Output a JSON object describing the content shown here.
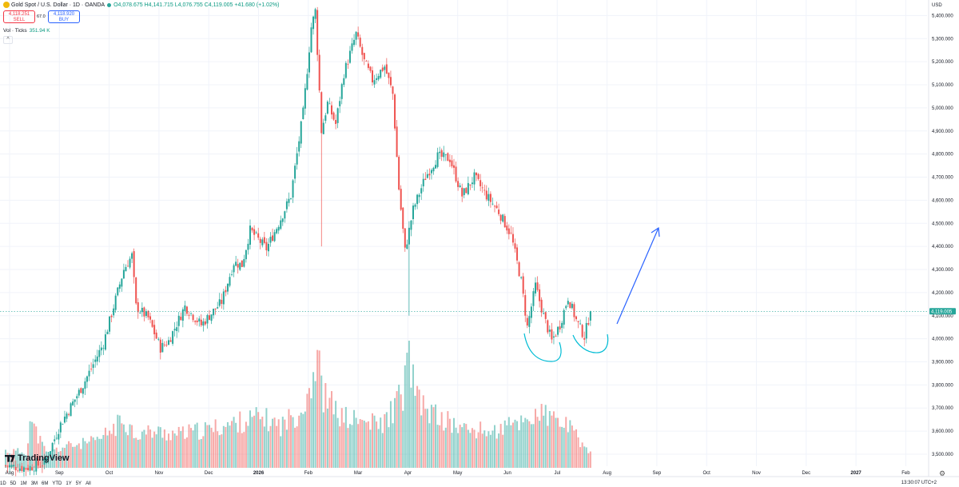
{
  "header": {
    "symbol": "Gold Spot / U.S. Dollar · 1D · OANDA",
    "ohlc": "O4,078.675  H4,141.715  L4,076.755  C4,119.005  +41.680 (+1.02%)",
    "sell_price": "4,118.251",
    "sell_label": "SELL",
    "spread": "67.0",
    "buy_price": "4,118.920",
    "buy_label": "BUY",
    "volume_label": "Vol · Ticks",
    "volume_value": "351.94 K",
    "currency": "USD",
    "collapse_symbol": "^"
  },
  "branding": {
    "logo_text": "TradingView"
  },
  "timeframes": [
    "1D",
    "5D",
    "1M",
    "3M",
    "6M",
    "YTD",
    "1Y",
    "5Y",
    "All"
  ],
  "clock": "13:30:07 UTC+2",
  "colors": {
    "up": "#26a69a",
    "down": "#ef5350",
    "price_line": "#26a69a",
    "annotation_arrow": "#2962ff",
    "annotation_curve": "#00bcd4"
  },
  "chart_data": {
    "type": "candlestick",
    "symbol": "XAUUSD",
    "interval": "1D",
    "y_ticks": [
      3500,
      3600,
      3700,
      3800,
      3900,
      4000,
      4100,
      4200,
      4300,
      4400,
      4500,
      4600,
      4700,
      4800,
      4900,
      5000,
      5100,
      5200,
      5300,
      5400
    ],
    "y_tick_labels": [
      "3,500.000",
      "3,600.000",
      "3,700.000",
      "3,800.000",
      "3,900.000",
      "4,000.000",
      "4,100.000",
      "4,200.000",
      "4,300.000",
      "4,400.000",
      "4,500.000",
      "4,600.000",
      "4,700.000",
      "4,800.000",
      "4,900.000",
      "5,000.000",
      "5,100.000",
      "5,200.000",
      "5,300.000",
      "5,400.000"
    ],
    "ylim": [
      3448,
      5450
    ],
    "x_month_labels": [
      "Aug",
      "Sep",
      "Oct",
      "Nov",
      "Dec",
      "2026",
      "Feb",
      "Mar",
      "Apr",
      "May",
      "Jun",
      "Jul",
      "Aug",
      "Sep",
      "Oct",
      "Nov",
      "Dec",
      "2027",
      "Feb"
    ],
    "last_price": 4119.005,
    "last_price_label": "4,119.005",
    "anchors": [
      {
        "d": 0,
        "p": 3450
      },
      {
        "d": 10,
        "p": 3440
      },
      {
        "d": 19,
        "p": 3460
      },
      {
        "d": 27,
        "p": 3630
      },
      {
        "d": 38,
        "p": 3800
      },
      {
        "d": 48,
        "p": 3980
      },
      {
        "d": 58,
        "p": 4300
      },
      {
        "d": 62,
        "p": 4360
      },
      {
        "d": 64,
        "p": 4140
      },
      {
        "d": 70,
        "p": 4090
      },
      {
        "d": 76,
        "p": 3960
      },
      {
        "d": 80,
        "p": 3990
      },
      {
        "d": 88,
        "p": 4140
      },
      {
        "d": 96,
        "p": 4060
      },
      {
        "d": 106,
        "p": 4160
      },
      {
        "d": 112,
        "p": 4330
      },
      {
        "d": 116,
        "p": 4320
      },
      {
        "d": 120,
        "p": 4470
      },
      {
        "d": 128,
        "p": 4390
      },
      {
        "d": 134,
        "p": 4500
      },
      {
        "d": 140,
        "p": 4620
      },
      {
        "d": 146,
        "p": 4980
      },
      {
        "d": 150,
        "p": 5350
      },
      {
        "d": 152,
        "p": 5420
      },
      {
        "d": 155,
        "p": 4900
      },
      {
        "d": 158,
        "p": 5020
      },
      {
        "d": 162,
        "p": 4930
      },
      {
        "d": 166,
        "p": 5150
      },
      {
        "d": 172,
        "p": 5320
      },
      {
        "d": 176,
        "p": 5200
      },
      {
        "d": 180,
        "p": 5120
      },
      {
        "d": 186,
        "p": 5180
      },
      {
        "d": 190,
        "p": 5060
      },
      {
        "d": 193,
        "p": 4650
      },
      {
        "d": 196,
        "p": 4380
      },
      {
        "d": 200,
        "p": 4560
      },
      {
        "d": 206,
        "p": 4700
      },
      {
        "d": 212,
        "p": 4790
      },
      {
        "d": 218,
        "p": 4780
      },
      {
        "d": 224,
        "p": 4620
      },
      {
        "d": 230,
        "p": 4700
      },
      {
        "d": 236,
        "p": 4620
      },
      {
        "d": 242,
        "p": 4550
      },
      {
        "d": 248,
        "p": 4450
      },
      {
        "d": 253,
        "p": 4250
      },
      {
        "d": 256,
        "p": 4050
      },
      {
        "d": 260,
        "p": 4230
      },
      {
        "d": 264,
        "p": 4100
      },
      {
        "d": 268,
        "p": 3990
      },
      {
        "d": 272,
        "p": 4060
      },
      {
        "d": 276,
        "p": 4180
      },
      {
        "d": 280,
        "p": 4080
      },
      {
        "d": 284,
        "p": 4010
      },
      {
        "d": 287,
        "p": 4119
      }
    ],
    "spikes": [
      {
        "d": 155,
        "low": 4400
      },
      {
        "d": 198,
        "low": 4100
      }
    ],
    "volume_ylim": [
      0,
      100
    ],
    "volume_profile": [
      {
        "d": 0,
        "v": 14
      },
      {
        "d": 10,
        "v": 13
      },
      {
        "d": 12,
        "v": 40
      },
      {
        "d": 20,
        "v": 12
      },
      {
        "d": 30,
        "v": 18
      },
      {
        "d": 45,
        "v": 22
      },
      {
        "d": 58,
        "v": 40
      },
      {
        "d": 64,
        "v": 28
      },
      {
        "d": 72,
        "v": 30
      },
      {
        "d": 85,
        "v": 28
      },
      {
        "d": 100,
        "v": 32
      },
      {
        "d": 115,
        "v": 38
      },
      {
        "d": 125,
        "v": 42
      },
      {
        "d": 135,
        "v": 35
      },
      {
        "d": 145,
        "v": 48
      },
      {
        "d": 150,
        "v": 72
      },
      {
        "d": 153,
        "v": 92
      },
      {
        "d": 156,
        "v": 60
      },
      {
        "d": 165,
        "v": 42
      },
      {
        "d": 175,
        "v": 38
      },
      {
        "d": 185,
        "v": 36
      },
      {
        "d": 195,
        "v": 62
      },
      {
        "d": 198,
        "v": 94
      },
      {
        "d": 202,
        "v": 55
      },
      {
        "d": 212,
        "v": 42
      },
      {
        "d": 225,
        "v": 32
      },
      {
        "d": 240,
        "v": 30
      },
      {
        "d": 255,
        "v": 40
      },
      {
        "d": 262,
        "v": 45
      },
      {
        "d": 275,
        "v": 36
      },
      {
        "d": 287,
        "v": 12
      }
    ]
  }
}
